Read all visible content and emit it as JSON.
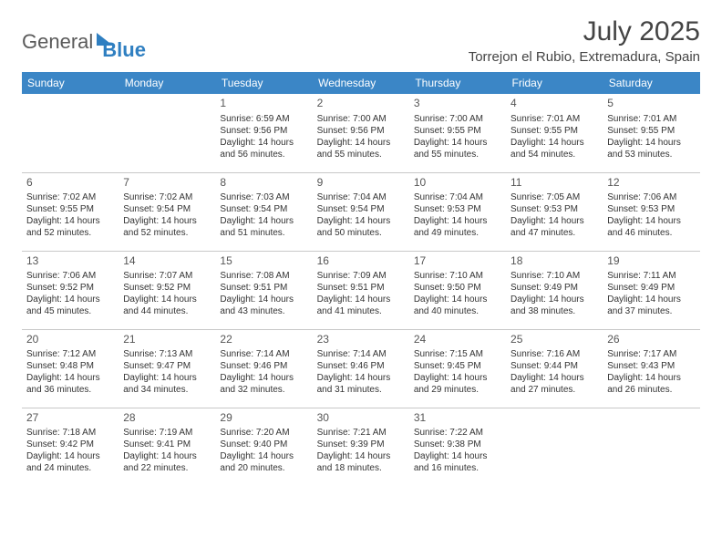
{
  "logo": {
    "word1": "General",
    "word2": "Blue"
  },
  "title": "July 2025",
  "subtitle": "Torrejon el Rubio, Extremadura, Spain",
  "colors": {
    "header_bg": "#3b86c6",
    "header_text": "#ffffff",
    "grid_line": "#c8c8c8",
    "body_text": "#333333",
    "title_text": "#444444",
    "logo_gray": "#5a5a5a",
    "logo_blue": "#2f7fc1",
    "page_bg": "#ffffff"
  },
  "weekdays": [
    "Sunday",
    "Monday",
    "Tuesday",
    "Wednesday",
    "Thursday",
    "Friday",
    "Saturday"
  ],
  "first_weekday_index": 2,
  "days": [
    {
      "n": 1,
      "sunrise": "6:59 AM",
      "sunset": "9:56 PM",
      "daylight": "14 hours and 56 minutes."
    },
    {
      "n": 2,
      "sunrise": "7:00 AM",
      "sunset": "9:56 PM",
      "daylight": "14 hours and 55 minutes."
    },
    {
      "n": 3,
      "sunrise": "7:00 AM",
      "sunset": "9:55 PM",
      "daylight": "14 hours and 55 minutes."
    },
    {
      "n": 4,
      "sunrise": "7:01 AM",
      "sunset": "9:55 PM",
      "daylight": "14 hours and 54 minutes."
    },
    {
      "n": 5,
      "sunrise": "7:01 AM",
      "sunset": "9:55 PM",
      "daylight": "14 hours and 53 minutes."
    },
    {
      "n": 6,
      "sunrise": "7:02 AM",
      "sunset": "9:55 PM",
      "daylight": "14 hours and 52 minutes."
    },
    {
      "n": 7,
      "sunrise": "7:02 AM",
      "sunset": "9:54 PM",
      "daylight": "14 hours and 52 minutes."
    },
    {
      "n": 8,
      "sunrise": "7:03 AM",
      "sunset": "9:54 PM",
      "daylight": "14 hours and 51 minutes."
    },
    {
      "n": 9,
      "sunrise": "7:04 AM",
      "sunset": "9:54 PM",
      "daylight": "14 hours and 50 minutes."
    },
    {
      "n": 10,
      "sunrise": "7:04 AM",
      "sunset": "9:53 PM",
      "daylight": "14 hours and 49 minutes."
    },
    {
      "n": 11,
      "sunrise": "7:05 AM",
      "sunset": "9:53 PM",
      "daylight": "14 hours and 47 minutes."
    },
    {
      "n": 12,
      "sunrise": "7:06 AM",
      "sunset": "9:53 PM",
      "daylight": "14 hours and 46 minutes."
    },
    {
      "n": 13,
      "sunrise": "7:06 AM",
      "sunset": "9:52 PM",
      "daylight": "14 hours and 45 minutes."
    },
    {
      "n": 14,
      "sunrise": "7:07 AM",
      "sunset": "9:52 PM",
      "daylight": "14 hours and 44 minutes."
    },
    {
      "n": 15,
      "sunrise": "7:08 AM",
      "sunset": "9:51 PM",
      "daylight": "14 hours and 43 minutes."
    },
    {
      "n": 16,
      "sunrise": "7:09 AM",
      "sunset": "9:51 PM",
      "daylight": "14 hours and 41 minutes."
    },
    {
      "n": 17,
      "sunrise": "7:10 AM",
      "sunset": "9:50 PM",
      "daylight": "14 hours and 40 minutes."
    },
    {
      "n": 18,
      "sunrise": "7:10 AM",
      "sunset": "9:49 PM",
      "daylight": "14 hours and 38 minutes."
    },
    {
      "n": 19,
      "sunrise": "7:11 AM",
      "sunset": "9:49 PM",
      "daylight": "14 hours and 37 minutes."
    },
    {
      "n": 20,
      "sunrise": "7:12 AM",
      "sunset": "9:48 PM",
      "daylight": "14 hours and 36 minutes."
    },
    {
      "n": 21,
      "sunrise": "7:13 AM",
      "sunset": "9:47 PM",
      "daylight": "14 hours and 34 minutes."
    },
    {
      "n": 22,
      "sunrise": "7:14 AM",
      "sunset": "9:46 PM",
      "daylight": "14 hours and 32 minutes."
    },
    {
      "n": 23,
      "sunrise": "7:14 AM",
      "sunset": "9:46 PM",
      "daylight": "14 hours and 31 minutes."
    },
    {
      "n": 24,
      "sunrise": "7:15 AM",
      "sunset": "9:45 PM",
      "daylight": "14 hours and 29 minutes."
    },
    {
      "n": 25,
      "sunrise": "7:16 AM",
      "sunset": "9:44 PM",
      "daylight": "14 hours and 27 minutes."
    },
    {
      "n": 26,
      "sunrise": "7:17 AM",
      "sunset": "9:43 PM",
      "daylight": "14 hours and 26 minutes."
    },
    {
      "n": 27,
      "sunrise": "7:18 AM",
      "sunset": "9:42 PM",
      "daylight": "14 hours and 24 minutes."
    },
    {
      "n": 28,
      "sunrise": "7:19 AM",
      "sunset": "9:41 PM",
      "daylight": "14 hours and 22 minutes."
    },
    {
      "n": 29,
      "sunrise": "7:20 AM",
      "sunset": "9:40 PM",
      "daylight": "14 hours and 20 minutes."
    },
    {
      "n": 30,
      "sunrise": "7:21 AM",
      "sunset": "9:39 PM",
      "daylight": "14 hours and 18 minutes."
    },
    {
      "n": 31,
      "sunrise": "7:22 AM",
      "sunset": "9:38 PM",
      "daylight": "14 hours and 16 minutes."
    }
  ],
  "labels": {
    "sunrise_prefix": "Sunrise: ",
    "sunset_prefix": "Sunset: ",
    "daylight_prefix": "Daylight: "
  }
}
